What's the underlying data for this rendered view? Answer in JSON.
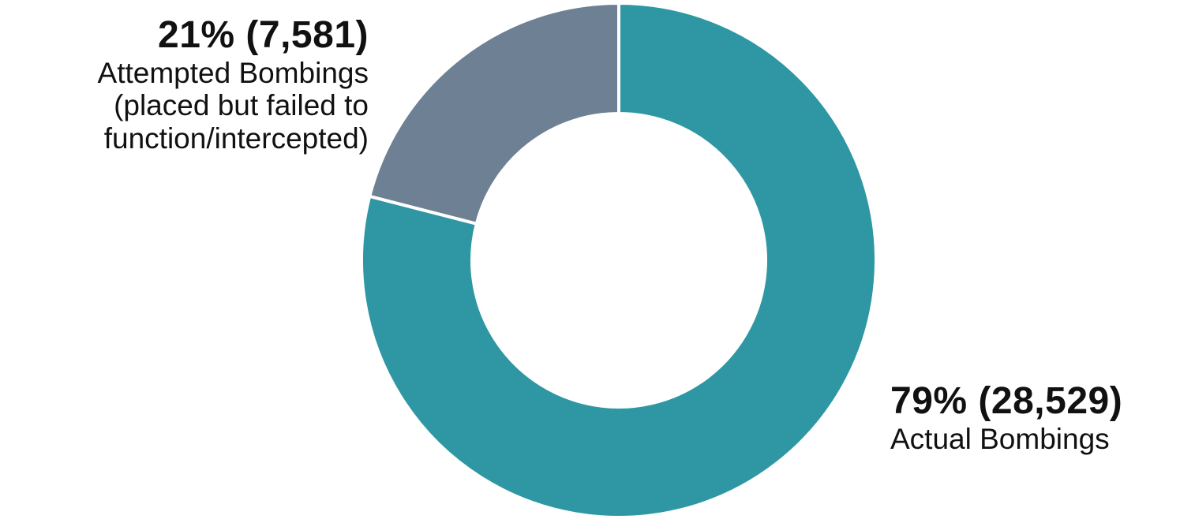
{
  "chart_data": {
    "type": "pie",
    "donut": true,
    "slices": [
      {
        "category": "Actual Bombings",
        "percent": 79,
        "value": 28529,
        "value_label": "79% (28,529)",
        "label": "Actual Bombings",
        "color": "#2E97A3"
      },
      {
        "category": "Attempted Bombings",
        "percent": 21,
        "value": 7581,
        "value_label": "21% (7,581)",
        "label": "Attempted Bombings\n(placed but failed to\nfunction/intercepted)",
        "color": "#6E8094"
      }
    ],
    "legend": "none",
    "start": "12 o'clock, clockwise"
  }
}
